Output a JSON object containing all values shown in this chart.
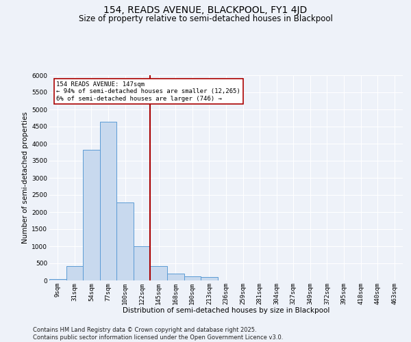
{
  "title1": "154, READS AVENUE, BLACKPOOL, FY1 4JD",
  "title2": "Size of property relative to semi-detached houses in Blackpool",
  "xlabel": "Distribution of semi-detached houses by size in Blackpool",
  "ylabel": "Number of semi-detached properties",
  "categories": [
    "9sqm",
    "31sqm",
    "54sqm",
    "77sqm",
    "100sqm",
    "122sqm",
    "145sqm",
    "168sqm",
    "190sqm",
    "213sqm",
    "236sqm",
    "259sqm",
    "281sqm",
    "304sqm",
    "327sqm",
    "349sqm",
    "372sqm",
    "395sqm",
    "418sqm",
    "440sqm",
    "463sqm"
  ],
  "values": [
    50,
    430,
    3820,
    4640,
    2280,
    1010,
    420,
    200,
    120,
    100,
    0,
    0,
    0,
    0,
    0,
    0,
    0,
    0,
    0,
    0,
    0
  ],
  "bar_color": "#c8d9ee",
  "bar_edge_color": "#5b9bd5",
  "vline_x_index": 5.5,
  "vline_color": "#aa0000",
  "annotation_text": "154 READS AVENUE: 147sqm\n← 94% of semi-detached houses are smaller (12,265)\n6% of semi-detached houses are larger (746) →",
  "annotation_box_color": "#ffffff",
  "annotation_box_edge": "#aa0000",
  "ylim": [
    0,
    6000
  ],
  "yticks": [
    0,
    500,
    1000,
    1500,
    2000,
    2500,
    3000,
    3500,
    4000,
    4500,
    5000,
    5500,
    6000
  ],
  "footer": "Contains HM Land Registry data © Crown copyright and database right 2025.\nContains public sector information licensed under the Open Government Licence v3.0.",
  "background_color": "#eef2f9",
  "grid_color": "#ffffff",
  "title_fontsize": 10,
  "subtitle_fontsize": 8.5,
  "axis_label_fontsize": 7.5,
  "tick_fontsize": 6.5,
  "footer_fontsize": 6
}
